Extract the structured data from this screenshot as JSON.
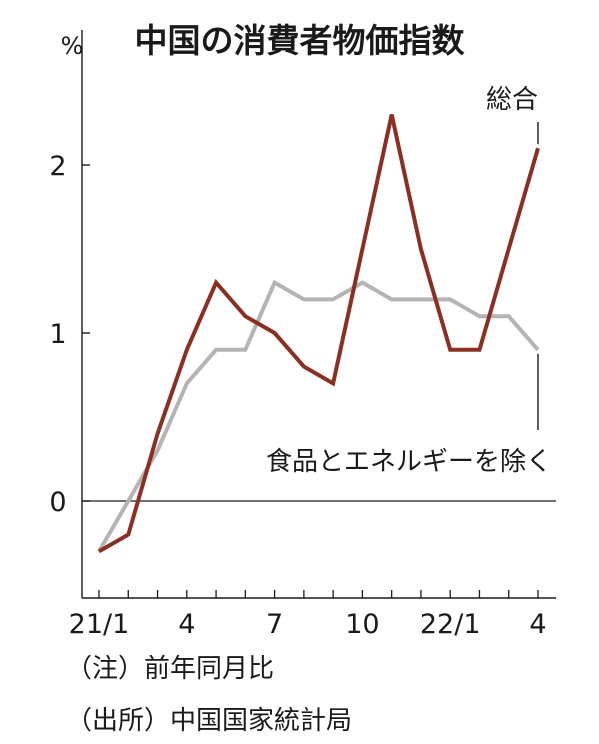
{
  "chart_data": {
    "type": "line",
    "title": "中国の消費者物価指数",
    "ylabel": "%",
    "xlabel": "",
    "ylim": [
      -0.6,
      2.5
    ],
    "yticks": [
      0,
      1,
      2
    ],
    "x": [
      "21/1",
      "21/2",
      "21/3",
      "21/4",
      "21/5",
      "21/6",
      "21/7",
      "21/8",
      "21/9",
      "21/10",
      "21/11",
      "21/12",
      "22/1",
      "22/2",
      "22/3",
      "22/4"
    ],
    "xtick_labels": [
      "21/1",
      "4",
      "7",
      "10",
      "22/1",
      "4"
    ],
    "xtick_index": [
      0,
      3,
      6,
      9,
      12,
      15
    ],
    "grid": false,
    "series": [
      {
        "name": "総合",
        "color": "#8b2f22",
        "values": [
          -0.3,
          -0.2,
          0.4,
          0.9,
          1.3,
          1.1,
          1.0,
          0.8,
          0.7,
          1.5,
          2.3,
          1.5,
          0.9,
          0.9,
          1.5,
          2.1
        ]
      },
      {
        "name": "食品とエネルギーを除く",
        "color": "#b4b4b4",
        "values": [
          -0.3,
          0.0,
          0.3,
          0.7,
          0.9,
          0.9,
          1.3,
          1.2,
          1.2,
          1.3,
          1.2,
          1.2,
          1.2,
          1.1,
          1.1,
          0.9
        ]
      }
    ]
  },
  "notes": [
    "（注）前年同月比",
    "（出所）中国国家統計局"
  ]
}
